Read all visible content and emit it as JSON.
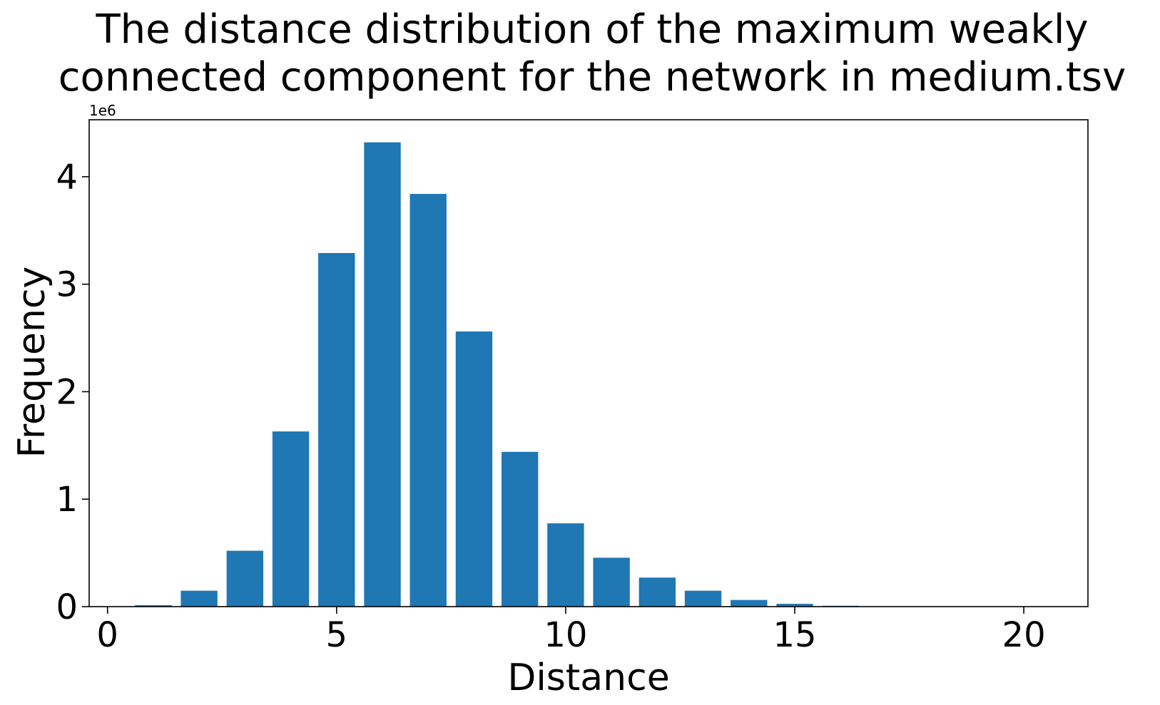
{
  "chart_data": {
    "type": "bar",
    "title_lines": [
      "The distance distribution of the maximum weakly",
      "connected component for the network in medium.tsv"
    ],
    "xlabel": "Distance",
    "ylabel": "Frequency",
    "y_offset_label": "1e6",
    "y_scale": 1000000,
    "xlim": [
      -0.4,
      21.4
    ],
    "ylim": [
      0,
      4530000
    ],
    "xticks": [
      0,
      5,
      10,
      15,
      20
    ],
    "xtick_labels": [
      "0",
      "5",
      "10",
      "15",
      "20"
    ],
    "yticks": [
      0,
      1000000,
      2000000,
      3000000,
      4000000
    ],
    "ytick_labels": [
      "0",
      "1",
      "2",
      "3",
      "4"
    ],
    "bar_color": "#1f77b4",
    "bar_width": 0.8,
    "grid": false,
    "legend": "none",
    "bars": [
      {
        "x": 0,
        "value": 0
      },
      {
        "x": 1,
        "value": 14000
      },
      {
        "x": 2,
        "value": 148000
      },
      {
        "x": 3,
        "value": 520000
      },
      {
        "x": 4,
        "value": 1630000
      },
      {
        "x": 5,
        "value": 3290000
      },
      {
        "x": 6,
        "value": 4320000
      },
      {
        "x": 7,
        "value": 3840000
      },
      {
        "x": 8,
        "value": 2560000
      },
      {
        "x": 9,
        "value": 1440000
      },
      {
        "x": 10,
        "value": 775000
      },
      {
        "x": 11,
        "value": 455000
      },
      {
        "x": 12,
        "value": 270000
      },
      {
        "x": 13,
        "value": 148000
      },
      {
        "x": 14,
        "value": 62000
      },
      {
        "x": 15,
        "value": 26000
      },
      {
        "x": 16,
        "value": 8000
      },
      {
        "x": 17,
        "value": 2000
      },
      {
        "x": 18,
        "value": 500
      },
      {
        "x": 19,
        "value": 100
      },
      {
        "x": 20,
        "value": 20
      }
    ]
  }
}
